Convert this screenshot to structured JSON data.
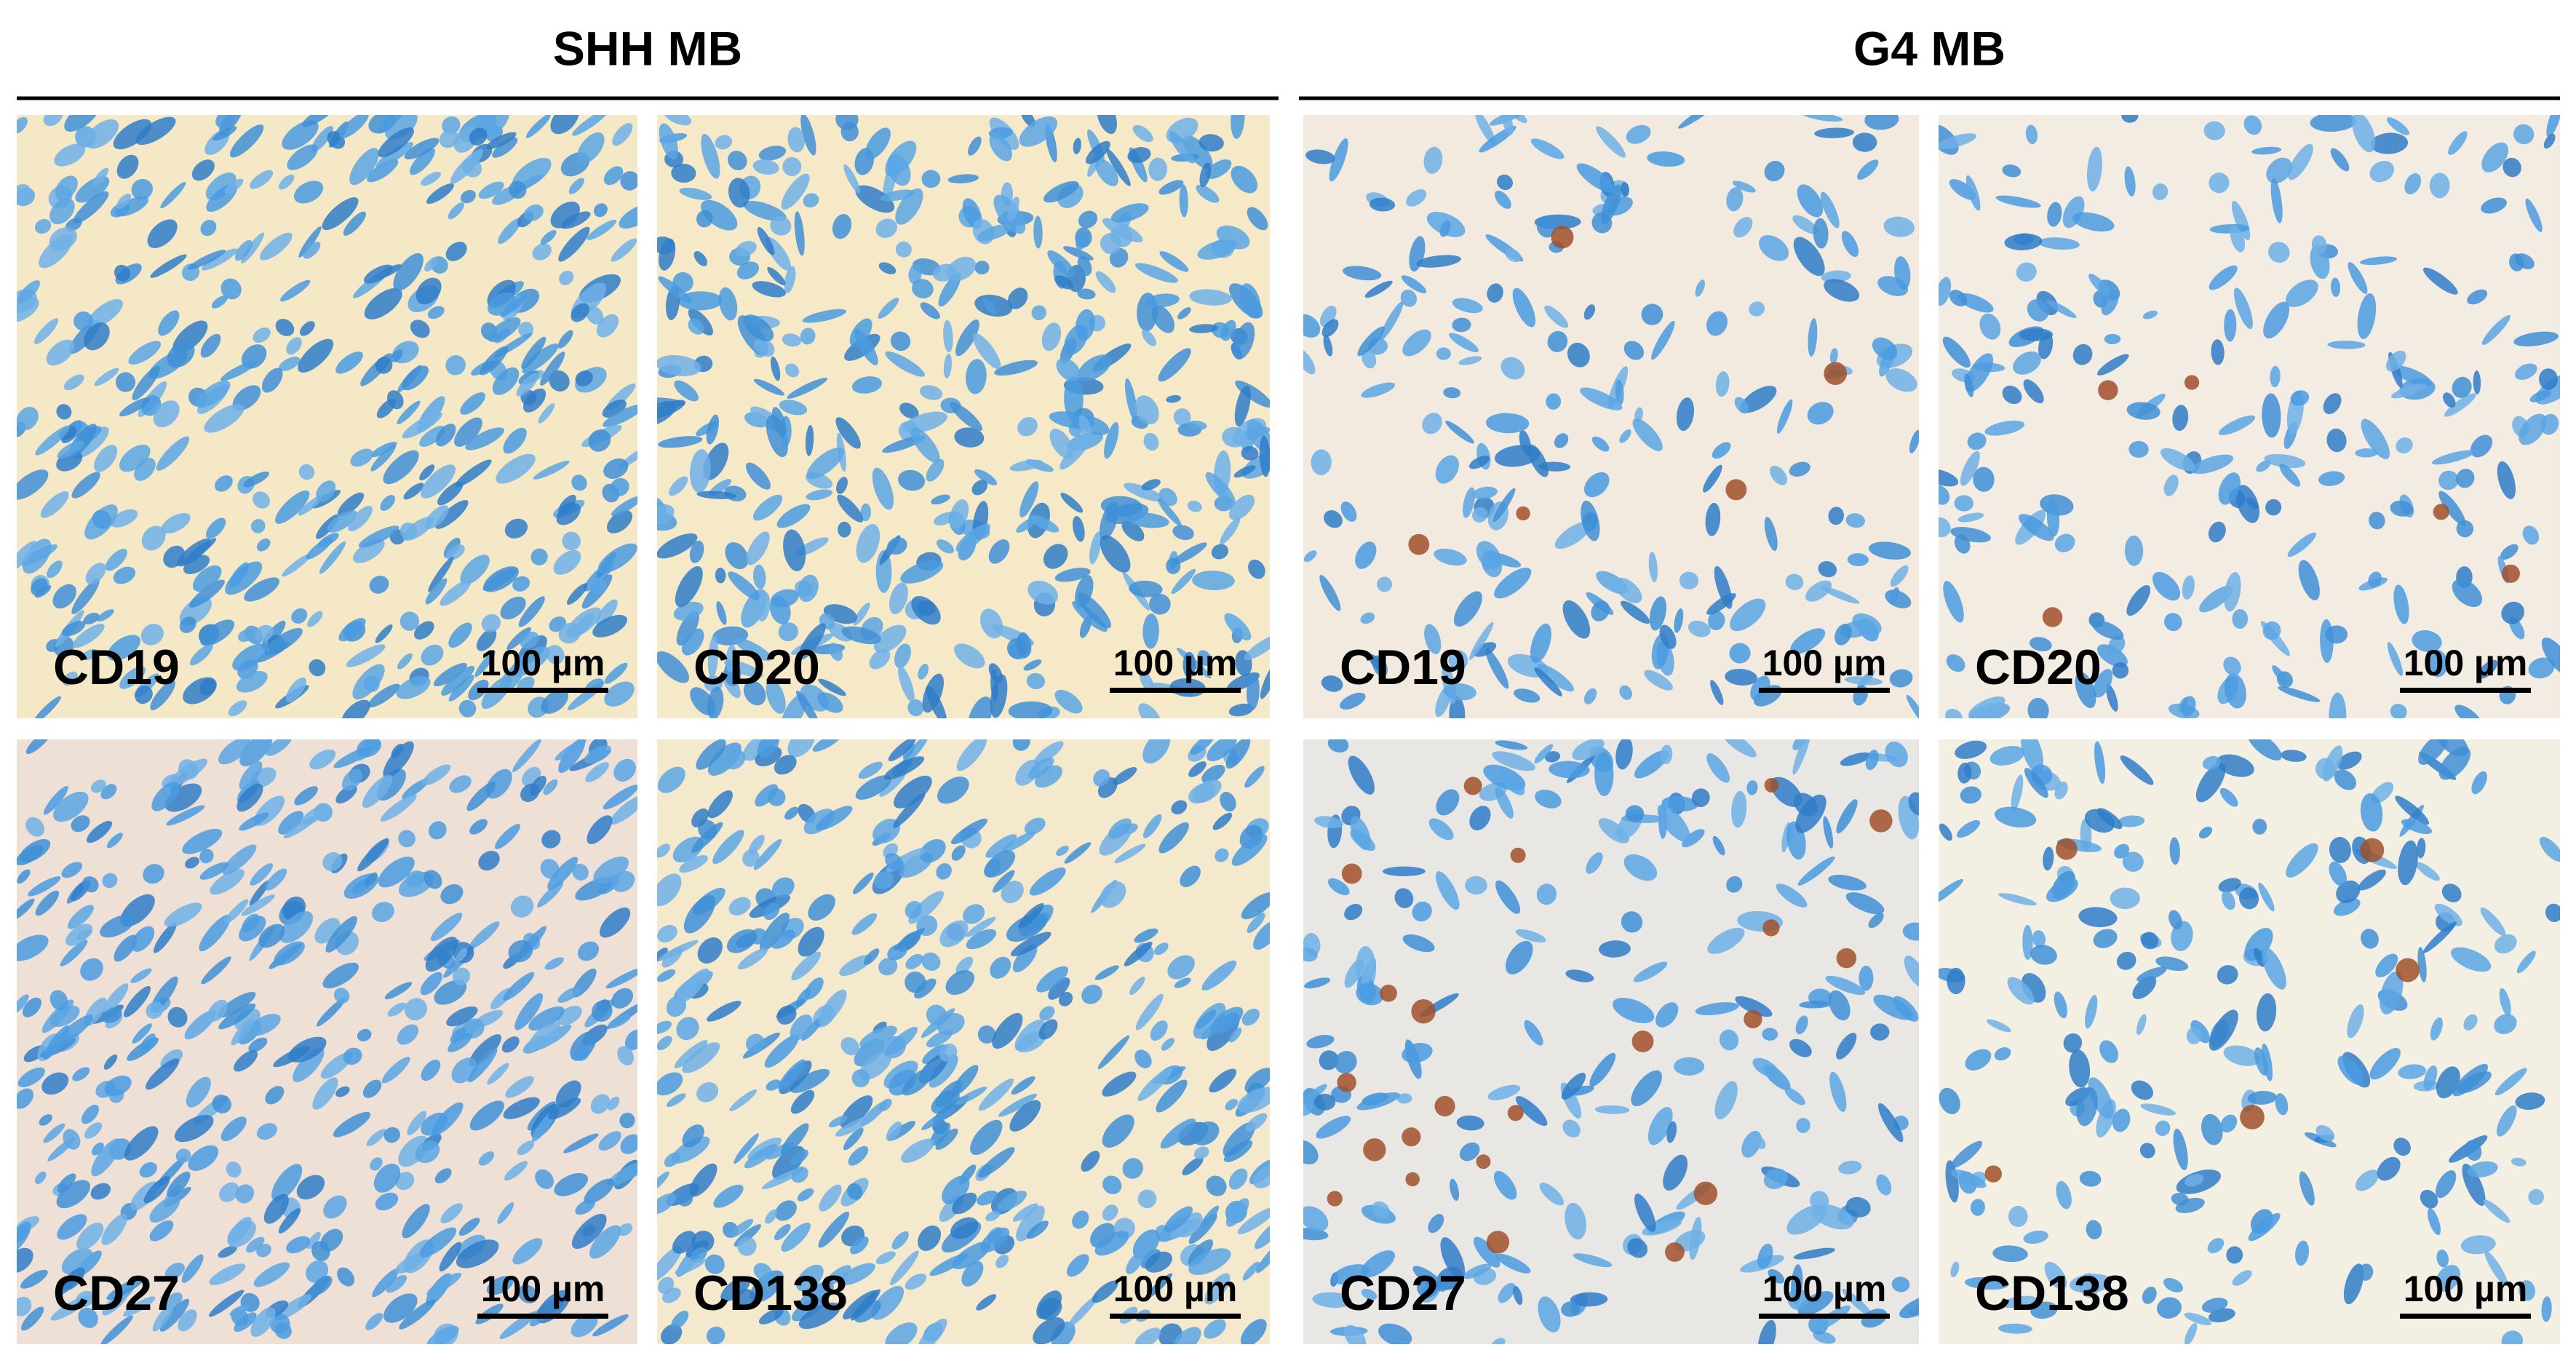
{
  "groups": [
    {
      "title": "SHH MB",
      "panels": [
        {
          "label": "CD19",
          "scale_bar": "100 µm"
        },
        {
          "label": "CD20",
          "scale_bar": "100 µm"
        },
        {
          "label": "CD27",
          "scale_bar": "100 µm"
        },
        {
          "label": "CD138",
          "scale_bar": "100 µm"
        }
      ]
    },
    {
      "title": "G4 MB",
      "panels": [
        {
          "label": "CD19",
          "scale_bar": "100 µm"
        },
        {
          "label": "CD20",
          "scale_bar": "100 µm"
        },
        {
          "label": "CD27",
          "scale_bar": "100 µm"
        },
        {
          "label": "CD138",
          "scale_bar": "100 µm"
        }
      ]
    }
  ]
}
